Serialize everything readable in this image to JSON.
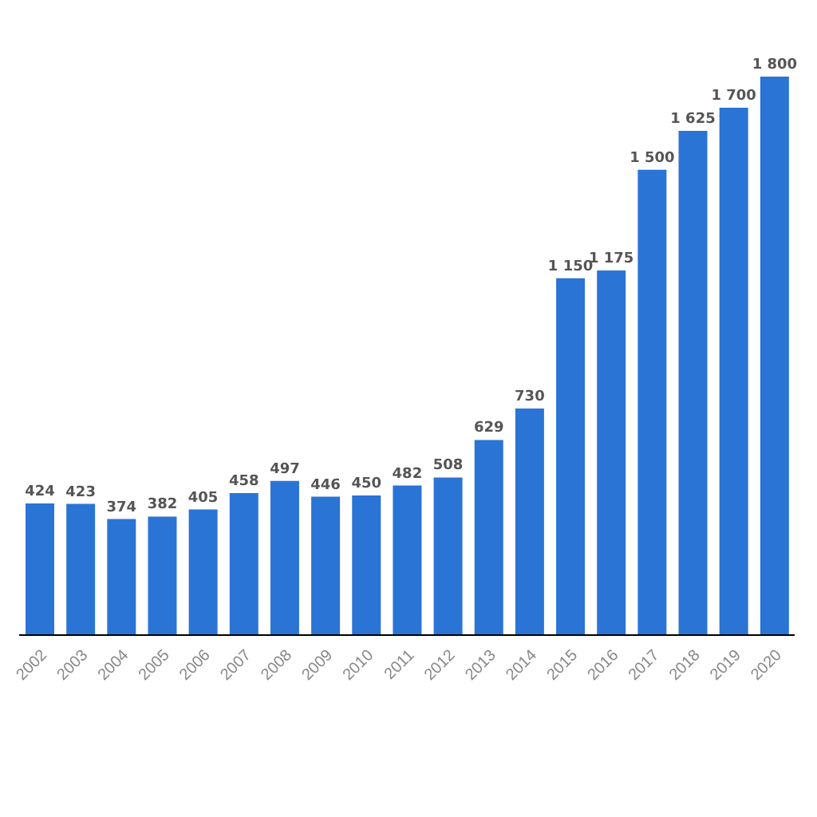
{
  "chart_data": {
    "type": "bar",
    "categories": [
      "2002",
      "2003",
      "2004",
      "2005",
      "2006",
      "2007",
      "2008",
      "2009",
      "2010",
      "2011",
      "2012",
      "2013",
      "2014",
      "2015",
      "2016",
      "2017",
      "2018",
      "2019",
      "2020"
    ],
    "values": [
      424,
      423,
      374,
      382,
      405,
      458,
      497,
      446,
      450,
      482,
      508,
      629,
      730,
      1150,
      1175,
      1500,
      1625,
      1700,
      1800
    ],
    "color": "#2a74d6",
    "tick_labels": "x",
    "data_labels": true
  }
}
